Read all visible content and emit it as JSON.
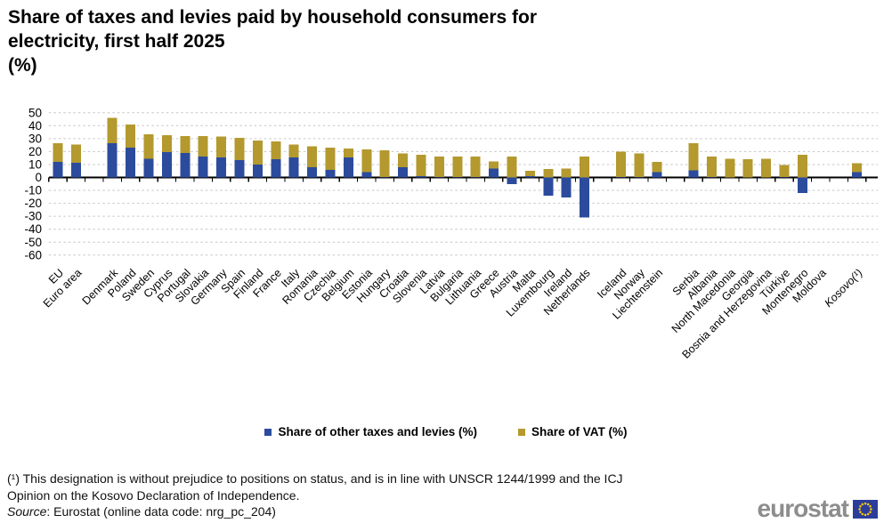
{
  "title_lines": [
    "Share of taxes and levies paid by household consumers for",
    "electricity, first half 2025",
    "(%)"
  ],
  "legend": [
    {
      "label": "Share of other taxes and levies (%)",
      "color": "#2c4b9d"
    },
    {
      "label": "Share of VAT (%)",
      "color": "#b3992e"
    }
  ],
  "footnote_lines": [
    "(¹) This designation is without prejudice to positions on status, and is in line with UNSCR 1244/1999 and the ICJ",
    "Opinion on the Kosovo Declaration of Independence."
  ],
  "source": {
    "prefix": "Source",
    "rest": ": Eurostat (online data code: nrg_pc_204)"
  },
  "logo": {
    "text": "eurostat"
  },
  "chart_data": {
    "type": "bar",
    "stacked": true,
    "title": "Share of taxes and levies paid by household consumers for electricity, first half 2025 (%)",
    "ylabel": "",
    "xlabel": "",
    "ylim": [
      -60,
      50
    ],
    "ytick_step": 10,
    "grid": true,
    "legend_position": "bottom",
    "series_names": [
      "Share of other taxes and levies (%)",
      "Share of VAT (%)"
    ],
    "colors": {
      "other": "#2c4b9d",
      "vat": "#b3992e"
    },
    "countries": [
      {
        "label": "EU",
        "other": 12,
        "vat": 14.5
      },
      {
        "label": "Euro area",
        "other": 11.5,
        "vat": 14,
        "gap_after": true
      },
      {
        "label": "Denmark",
        "other": 26.5,
        "vat": 19.5
      },
      {
        "label": "Poland",
        "other": 23,
        "vat": 18
      },
      {
        "label": "Sweden",
        "other": 14.5,
        "vat": 19
      },
      {
        "label": "Cyprus",
        "other": 19.5,
        "vat": 13
      },
      {
        "label": "Portugal",
        "other": 19,
        "vat": 13
      },
      {
        "label": "Slovakia",
        "other": 16,
        "vat": 16
      },
      {
        "label": "Germany",
        "other": 15.5,
        "vat": 16
      },
      {
        "label": "Spain",
        "other": 13.5,
        "vat": 17
      },
      {
        "label": "Finland",
        "other": 10,
        "vat": 18.5
      },
      {
        "label": "France",
        "other": 14,
        "vat": 14
      },
      {
        "label": "Italy",
        "other": 15.5,
        "vat": 10
      },
      {
        "label": "Romania",
        "other": 8,
        "vat": 16
      },
      {
        "label": "Czechia",
        "other": 6,
        "vat": 17
      },
      {
        "label": "Belgium",
        "other": 15.5,
        "vat": 7
      },
      {
        "label": "Estonia",
        "other": 4,
        "vat": 17.5
      },
      {
        "label": "Hungary",
        "other": 0.5,
        "vat": 20.5
      },
      {
        "label": "Croatia",
        "other": 8,
        "vat": 10.5
      },
      {
        "label": "Slovenia",
        "other": 1,
        "vat": 16.5
      },
      {
        "label": "Latvia",
        "other": 0.5,
        "vat": 15.5
      },
      {
        "label": "Bulgaria",
        "other": 0.5,
        "vat": 15.5
      },
      {
        "label": "Lithuania",
        "other": 0.5,
        "vat": 15.5
      },
      {
        "label": "Greece",
        "other": 7,
        "vat": 5.5
      },
      {
        "label": "Austria",
        "other": -5,
        "vat": 16
      },
      {
        "label": "Malta",
        "other": 1,
        "vat": 4
      },
      {
        "label": "Luxembourg",
        "other": -14,
        "vat": 6.5
      },
      {
        "label": "Ireland",
        "other": -15.5,
        "vat": 7
      },
      {
        "label": "Netherlands",
        "other": -31,
        "vat": 16,
        "gap_after": true
      },
      {
        "label": "Iceland",
        "other": 0.5,
        "vat": 19.5
      },
      {
        "label": "Norway",
        "other": 0.5,
        "vat": 18
      },
      {
        "label": "Liechtenstein",
        "other": 4,
        "vat": 8,
        "gap_after": true
      },
      {
        "label": "Serbia",
        "other": 5.5,
        "vat": 21
      },
      {
        "label": "Albania",
        "other": 0.5,
        "vat": 15.5
      },
      {
        "label": "North Macedonia",
        "other": 0,
        "vat": 14.5
      },
      {
        "label": "Georgia",
        "other": 0,
        "vat": 14
      },
      {
        "label": "Bosnia and Herzegovina",
        "other": 0,
        "vat": 14.5
      },
      {
        "label": "Türkiye",
        "other": 0.5,
        "vat": 9
      },
      {
        "label": "Montenegro",
        "other": -12,
        "vat": 17.5
      },
      {
        "label": "Moldova",
        "other": null,
        "vat": null,
        "gap_after": true
      },
      {
        "label": "Kosovo(¹)",
        "other": 4,
        "vat": 7,
        "italic": true
      }
    ]
  }
}
